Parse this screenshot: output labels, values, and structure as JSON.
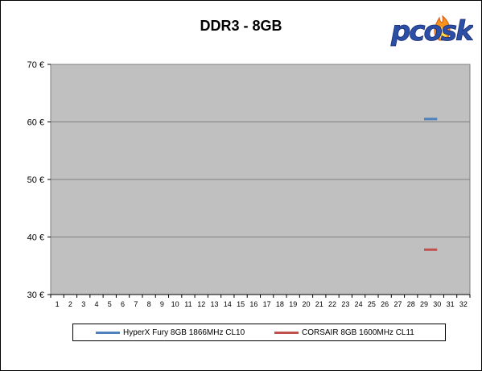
{
  "logo": {
    "text": "pcosk",
    "icon": "flame-icon"
  },
  "chart_data": {
    "type": "line",
    "title": "DDR3 - 8GB",
    "xlabel": "",
    "ylabel": "",
    "x": [
      1,
      2,
      3,
      4,
      5,
      6,
      7,
      8,
      9,
      10,
      11,
      12,
      13,
      14,
      15,
      16,
      17,
      18,
      19,
      20,
      21,
      22,
      23,
      24,
      25,
      26,
      27,
      28,
      29,
      30,
      31,
      32
    ],
    "ylim": [
      30,
      70
    ],
    "yticks": [
      "30 €",
      "40 €",
      "50 €",
      "60 €",
      "70 €"
    ],
    "ytick_values": [
      30,
      40,
      50,
      60,
      70
    ],
    "grid": true,
    "legend_position": "bottom",
    "series": [
      {
        "name": "HyperX Fury 8GB 1866MHz CL10",
        "color": "#4f81bd",
        "points": [
          [
            29,
            60.5
          ],
          [
            30,
            60.5
          ]
        ]
      },
      {
        "name": "CORSAIR 8GB 1600MHz CL11",
        "color": "#c0504d",
        "points": [
          [
            29,
            37.8
          ],
          [
            30,
            37.8
          ]
        ]
      }
    ],
    "plot_background": "#c0c0c0"
  }
}
